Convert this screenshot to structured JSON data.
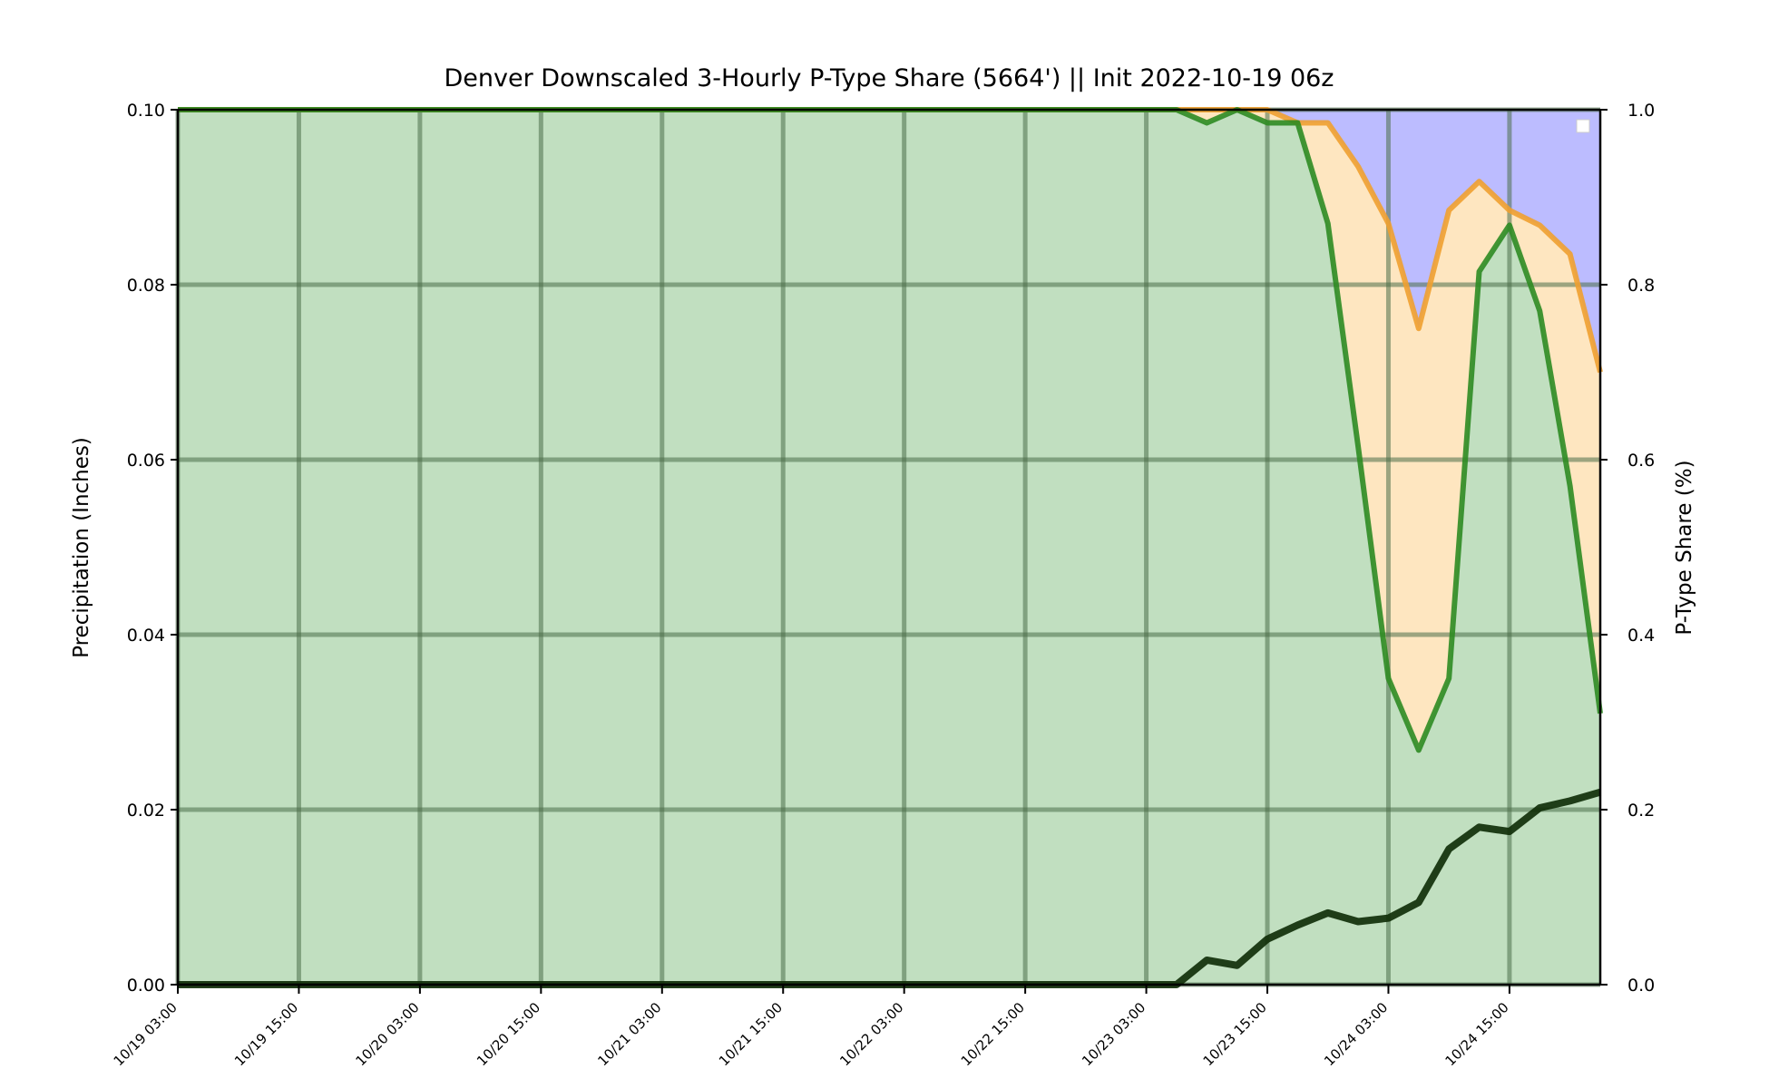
{
  "chart_data": {
    "type": "area",
    "title": "Denver Downscaled 3-Hourly P-Type Share (5664') || Init 2022-10-19 06z",
    "ylabel_left": "Precipitation (Inches)",
    "ylabel_right": "P-Type Share (%)",
    "xlabel": "",
    "ylim_left": [
      0,
      0.1
    ],
    "ylim_right": [
      0,
      1.0
    ],
    "yticks_left": [
      "0.00",
      "0.02",
      "0.04",
      "0.06",
      "0.08",
      "0.10"
    ],
    "yticks_right": [
      "0.0",
      "0.2",
      "0.4",
      "0.6",
      "0.8",
      "1.0"
    ],
    "xticks": [
      "10/19 03:00",
      "10/19 15:00",
      "10/20 03:00",
      "10/20 15:00",
      "10/21 03:00",
      "10/21 15:00",
      "10/22 03:00",
      "10/22 15:00",
      "10/23 03:00",
      "10/23 15:00",
      "10/24 03:00",
      "10/24 15:00"
    ],
    "x": [
      "10/19 03:00",
      "10/19 06:00",
      "10/19 09:00",
      "10/19 12:00",
      "10/19 15:00",
      "10/19 18:00",
      "10/19 21:00",
      "10/20 00:00",
      "10/20 03:00",
      "10/20 06:00",
      "10/20 09:00",
      "10/20 12:00",
      "10/20 15:00",
      "10/20 18:00",
      "10/20 21:00",
      "10/21 00:00",
      "10/21 03:00",
      "10/21 06:00",
      "10/21 09:00",
      "10/21 12:00",
      "10/21 15:00",
      "10/21 18:00",
      "10/21 21:00",
      "10/22 00:00",
      "10/22 03:00",
      "10/22 06:00",
      "10/22 09:00",
      "10/22 12:00",
      "10/22 15:00",
      "10/22 18:00",
      "10/22 21:00",
      "10/23 00:00",
      "10/23 03:00",
      "10/23 06:00",
      "10/23 09:00",
      "10/23 12:00",
      "10/23 15:00",
      "10/23 18:00",
      "10/23 21:00",
      "10/24 00:00",
      "10/24 03:00",
      "10/24 06:00",
      "10/24 09:00",
      "10/24 12:00",
      "10/24 15:00",
      "10/24 18:00",
      "10/24 21:00",
      "10/25 00:00"
    ],
    "series": [
      {
        "color": "#2e8b22",
        "fill": "#c1dfc0",
        "axis": "right",
        "values": [
          1,
          1,
          1,
          1,
          1,
          1,
          1,
          1,
          1,
          1,
          1,
          1,
          1,
          1,
          1,
          1,
          1,
          1,
          1,
          1,
          1,
          1,
          1,
          1,
          1,
          1,
          1,
          1,
          1,
          1,
          1,
          1,
          1,
          1,
          0.985,
          1,
          0.985,
          0.985,
          0.87,
          0.615,
          0.35,
          0.268,
          0.35,
          0.815,
          0.868,
          0.77,
          0.57,
          0.31
        ]
      },
      {
        "color": "#f0a030",
        "fill": "#fee6c0",
        "axis": "right",
        "values": [
          1,
          1,
          1,
          1,
          1,
          1,
          1,
          1,
          1,
          1,
          1,
          1,
          1,
          1,
          1,
          1,
          1,
          1,
          1,
          1,
          1,
          1,
          1,
          1,
          1,
          1,
          1,
          1,
          1,
          1,
          1,
          1,
          1,
          1,
          1,
          1,
          1,
          0.985,
          0.985,
          0.935,
          0.87,
          0.75,
          0.885,
          0.918,
          0.885,
          0.868,
          0.835,
          0.7
        ]
      },
      {
        "color": "#0d2b05",
        "axis": "left",
        "values": [
          0,
          0,
          0,
          0,
          0,
          0,
          0,
          0,
          0,
          0,
          0,
          0,
          0,
          0,
          0,
          0,
          0,
          0,
          0,
          0,
          0,
          0,
          0,
          0,
          0,
          0,
          0,
          0,
          0,
          0,
          0,
          0,
          0,
          0,
          0.0028,
          0.0022,
          0.0052,
          0.0068,
          0.0082,
          0.0072,
          0.0076,
          0.0094,
          0.0155,
          0.018,
          0.0175,
          0.0202,
          0.021,
          0.022
        ]
      }
    ],
    "top_fill": "#bcbcff",
    "grid": true,
    "legend": "top-right"
  }
}
